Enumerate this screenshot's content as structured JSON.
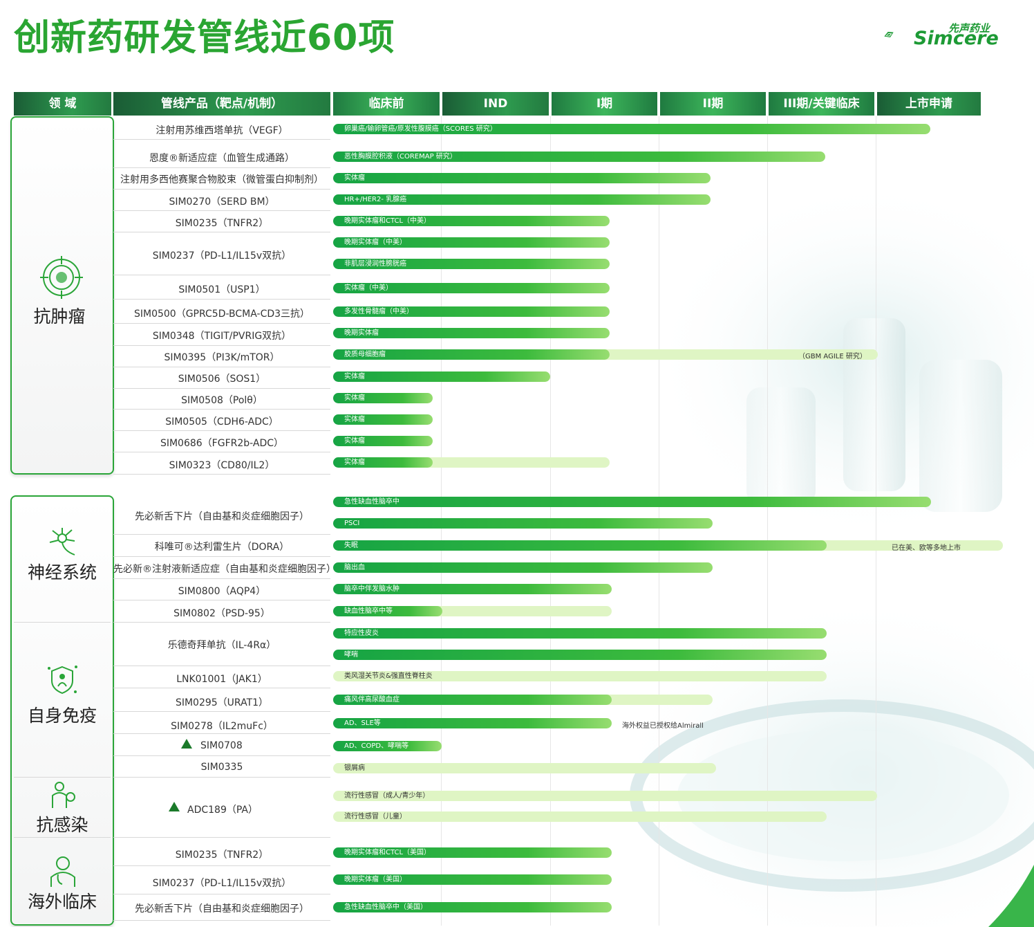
{
  "title": "创新药研发管线近60项",
  "logo": {
    "cn": "先声药业",
    "en": "Simcere"
  },
  "headers": [
    "领 域",
    "管线产品（靶点/机制）",
    "临床前",
    "IND",
    "I期",
    "II期",
    "III期/关键临床",
    "上市申请"
  ],
  "domains": [
    "抗肿瘤",
    "神经系统",
    "自身免疫",
    "抗感染",
    "海外临床"
  ],
  "products": [
    "注射用苏维西塔单抗（VEGF）",
    "恩度®新适应症（血管生成通路）",
    "注射用多西他赛聚合物胶束（微管蛋白抑制剂）",
    "SIM0270（SERD BM）",
    "SIM0235（TNFR2）",
    "SIM0237（PD-L1/IL15v双抗）",
    "SIM0501（USP1）",
    "SIM0500（GPRC5D-BCMA-CD3三抗）",
    "SIM0348（TIGIT/PVRIG双抗）",
    "SIM0395（PI3K/mTOR）",
    "SIM0506（SOS1）",
    "SIM0508（Polθ）",
    "SIM0505（CDH6-ADC）",
    "SIM0686（FGFR2b-ADC）",
    "SIM0323（CD80/IL2）",
    "先必新舌下片（自由基和炎症细胞因子）",
    "科唯可®达利雷生片（DORA）",
    "先必新®注射液新适应症（自由基和炎症细胞因子）",
    "SIM0800（AQP4）",
    "SIM0802（PSD-95）",
    "乐德奇拜单抗（IL-4Rα）",
    "LNK01001（JAK1）",
    "SIM0295（URAT1）",
    "SIM0278（IL2muFc）",
    "SIM0708",
    "SIM0335",
    "ADC189（PA）",
    "SIM0235（TNFR2）",
    "SIM0237（PD-L1/IL15v双抗）",
    "先必新舌下片（自由基和炎症细胞因子）"
  ],
  "bars": [
    {
      "label": "卵巢癌/输卵管癌/原发性腹膜癌（SCORES 研究）",
      "stage": "上市申请",
      "progress": 0.86
    },
    {
      "label": "恶性胸膜腔积液（COREMAP 研究）",
      "stage": "III期/关键临床",
      "progress": 0.72
    },
    {
      "label": "实体瘤",
      "stage": "II期",
      "progress": 0.5
    },
    {
      "label": "HR+/HER2- 乳腺癌",
      "stage": "II期",
      "progress": 0.5
    },
    {
      "label": "晚期实体瘤和CTCL（中美）",
      "stage": "I期",
      "progress": 0.5
    },
    {
      "label": "晚期实体瘤（中美）",
      "stage": "I期",
      "progress": 0.5
    },
    {
      "label": "非肌层浸润性膀胱癌",
      "stage": "I期",
      "progress": 0.5
    },
    {
      "label": "实体瘤（中美）",
      "stage": "I期",
      "progress": 0.5
    },
    {
      "label": "多发性骨髓瘤（中美）",
      "stage": "I期",
      "progress": 0.5
    },
    {
      "label": "晚期实体瘤",
      "stage": "I期",
      "progress": 0.5
    },
    {
      "label": "胶质母细胞瘤",
      "stage": "I期",
      "progress": 0.5
    },
    {
      "label": "实体瘤",
      "stage": "IND",
      "progress": 1.0
    },
    {
      "label": "实体瘤",
      "stage": "临床前",
      "progress": 0.9
    },
    {
      "label": "实体瘤",
      "stage": "临床前",
      "progress": 0.9
    },
    {
      "label": "实体瘤",
      "stage": "临床前",
      "progress": 0.9
    },
    {
      "label": "实体瘤",
      "stage": "临床前",
      "progress": 0.9
    },
    {
      "label": "急性缺血性脑卒中",
      "stage": "上市申请",
      "progress": 0.9
    },
    {
      "label": "PSCI",
      "stage": "II期",
      "progress": 0.5
    },
    {
      "label": "失眠",
      "stage": "III期/关键临床",
      "progress": 0.5
    },
    {
      "label": "脑出血",
      "stage": "II期",
      "progress": 0.5
    },
    {
      "label": "脑卒中伴发脑水肿",
      "stage": "I期",
      "progress": 0.5
    },
    {
      "label": "缺血性脑卒中等",
      "stage": "临床前",
      "progress": 1.0
    },
    {
      "label": "特应性皮炎",
      "stage": "III期/关键临床",
      "progress": 0.5
    },
    {
      "label": "哮喘",
      "stage": "III期/关键临床",
      "progress": 0.5
    },
    {
      "label": "类风湿关节炎&强直性脊柱炎",
      "stage": "III期/关键临床",
      "progress": 0.5
    },
    {
      "label": "痛风伴高尿酸血症",
      "stage": "I期",
      "progress": 0.5
    },
    {
      "label": "AD、SLE等",
      "stage": "I期",
      "progress": 0.5
    },
    {
      "label": "AD、COPD、哮喘等",
      "stage": "临床前",
      "progress": 1.0
    },
    {
      "label": "银屑病",
      "stage": "II期",
      "progress": 0.5
    },
    {
      "label": "流行性感冒（成人/青少年）",
      "stage": "III期/关键临床",
      "progress": 1.0
    },
    {
      "label": "流行性感冒（儿童）",
      "stage": "III期/关键临床",
      "progress": 0.5
    },
    {
      "label": "晚期实体瘤和CTCL（美国）",
      "stage": "I期",
      "progress": 0.5
    },
    {
      "label": "晚期实体瘤（美国）",
      "stage": "I期",
      "progress": 0.5
    },
    {
      "label": "急性缺血性脑卒中（美国）",
      "stage": "I期",
      "progress": 0.5
    }
  ],
  "notes": {
    "gbm": "（GBM AGILE 研究）",
    "dora": "已在美、欧等多地上市",
    "sim0278": "海外权益已授权给Almirall"
  },
  "colors": {
    "brand_green": "#2aa532",
    "bar_dark": "#16a444",
    "bar_light": "#dff5c4",
    "header_dark": "#1a5c35"
  },
  "icons": [
    "tumor-target-icon",
    "neuron-icon",
    "immune-shield-icon",
    "infection-person-icon",
    "doctor-icon",
    "triangle-icon",
    "simcere-logo-icon"
  ]
}
